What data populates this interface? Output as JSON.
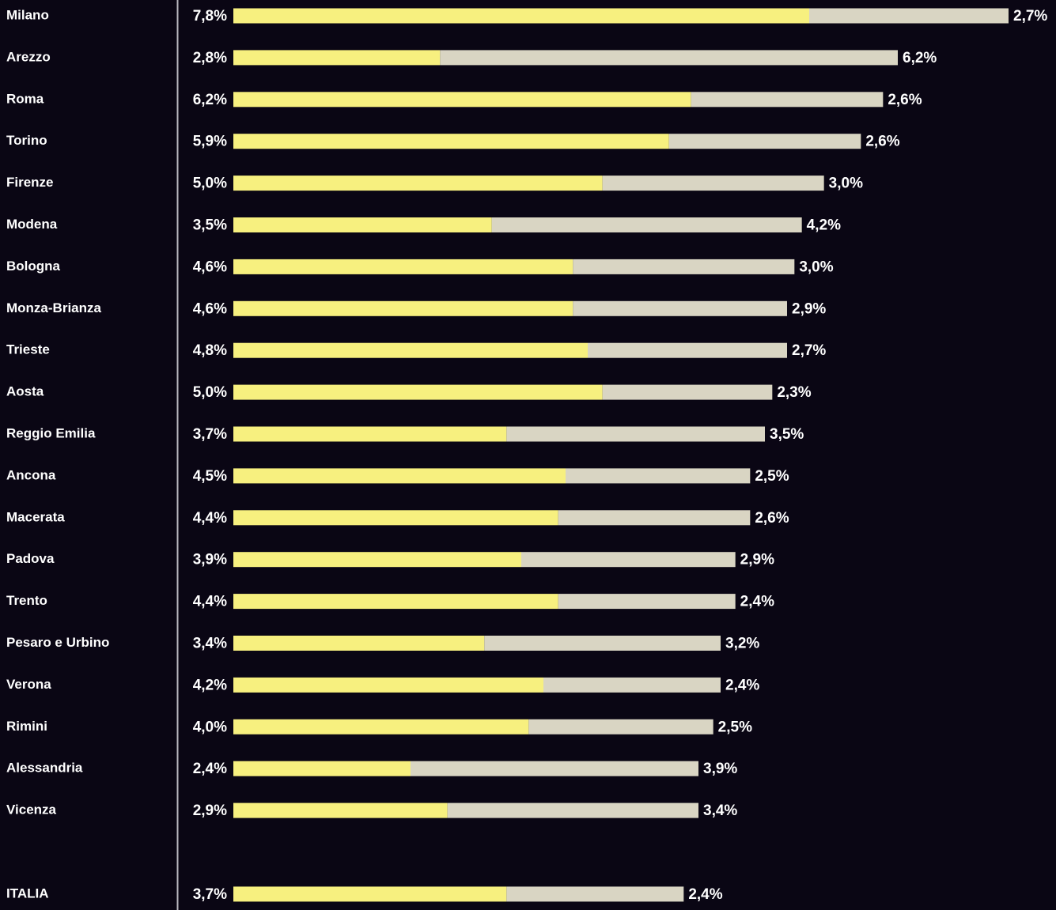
{
  "chart_data": {
    "type": "stacked-bar-horizontal",
    "categories": [
      "Milano",
      "Arezzo",
      "Roma",
      "Torino",
      "Firenze",
      "Modena",
      "Bologna",
      "Monza-Brianza",
      "Trieste",
      "Aosta",
      "Reggio Emilia",
      "Ancona",
      "Macerata",
      "Padova",
      "Trento",
      "Pesaro e Urbino",
      "Verona",
      "Rimini",
      "Alessandria",
      "Vicenza",
      "ITALIA"
    ],
    "series": [
      {
        "color": "#f7f07f",
        "values": [
          7.8,
          2.8,
          6.2,
          5.9,
          5.0,
          3.5,
          4.6,
          4.6,
          4.8,
          5.0,
          3.7,
          4.5,
          4.4,
          3.9,
          4.4,
          3.4,
          4.2,
          4.0,
          2.4,
          2.9,
          3.7
        ],
        "value_labels": [
          "7,8%",
          "2,8%",
          "6,2%",
          "5,9%",
          "5,0%",
          "3,5%",
          "4,6%",
          "4,6%",
          "4,8%",
          "5,0%",
          "3,7%",
          "4,5%",
          "4,4%",
          "3,9%",
          "4,4%",
          "3,4%",
          "4,2%",
          "4,0%",
          "2,4%",
          "2,9%",
          "3,7%"
        ]
      },
      {
        "color": "#d9d5c3",
        "values": [
          2.7,
          6.2,
          2.6,
          2.6,
          3.0,
          4.2,
          3.0,
          2.9,
          2.7,
          2.3,
          3.5,
          2.5,
          2.6,
          2.9,
          2.4,
          3.2,
          2.4,
          2.5,
          3.9,
          3.4,
          2.4
        ],
        "value_labels": [
          "2,7%",
          "6,2%",
          "2,6%",
          "2,6%",
          "3,0%",
          "4,2%",
          "3,0%",
          "2,9%",
          "2,7%",
          "2,3%",
          "3,5%",
          "2,5%",
          "2,6%",
          "2,9%",
          "2,4%",
          "3,2%",
          "2,4%",
          "2,5%",
          "3,9%",
          "3,4%",
          "2,4%"
        ]
      }
    ]
  }
}
